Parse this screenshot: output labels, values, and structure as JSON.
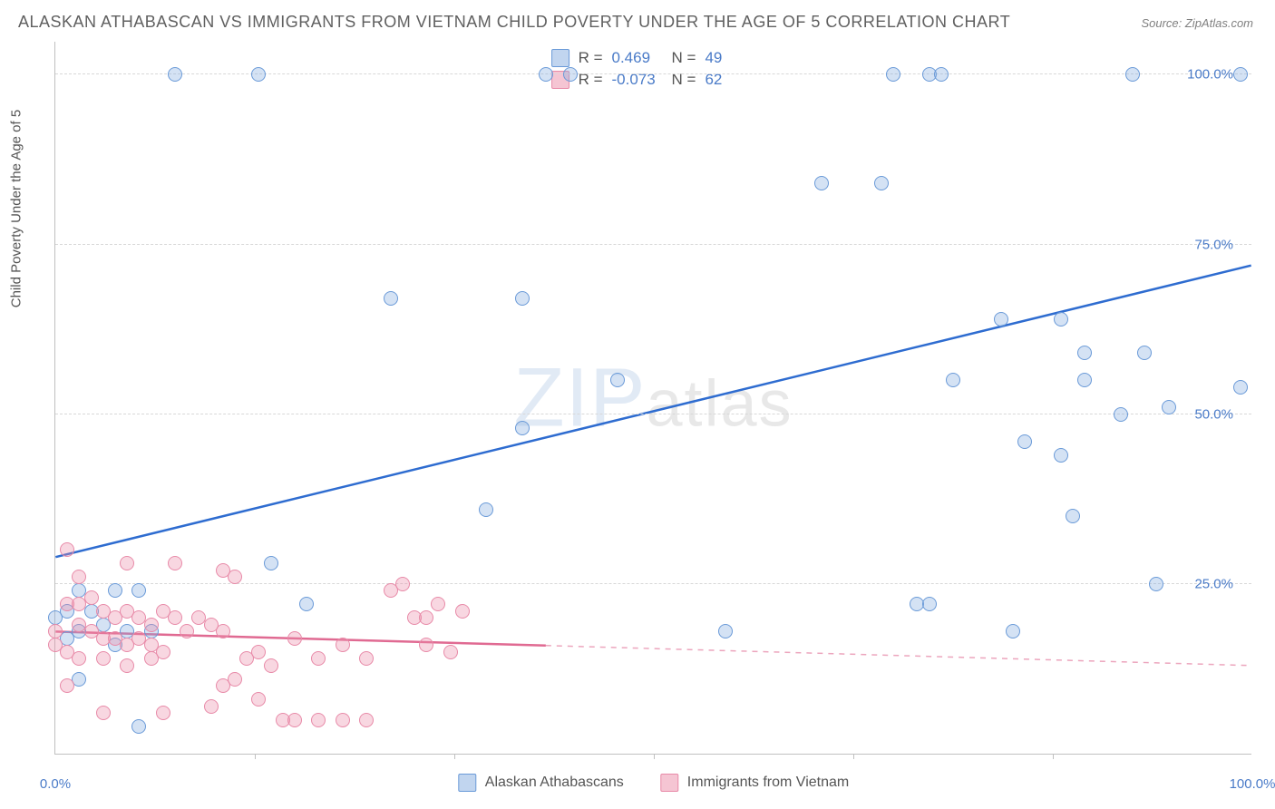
{
  "title": "ALASKAN ATHABASCAN VS IMMIGRANTS FROM VIETNAM CHILD POVERTY UNDER THE AGE OF 5 CORRELATION CHART",
  "source": "Source: ZipAtlas.com",
  "ylabel": "Child Poverty Under the Age of 5",
  "watermark": {
    "zip": "ZIP",
    "atlas": "atlas"
  },
  "chart": {
    "type": "scatter",
    "xlim": [
      0,
      100
    ],
    "ylim": [
      0,
      105
    ],
    "xticks": [
      0,
      100
    ],
    "xtick_labels": [
      "0.0%",
      "100.0%"
    ],
    "xtick_minor": [
      16.7,
      33.3,
      50,
      66.7,
      83.3
    ],
    "yticks": [
      25,
      50,
      75,
      100
    ],
    "ytick_labels": [
      "25.0%",
      "50.0%",
      "75.0%",
      "100.0%"
    ],
    "background_color": "#ffffff",
    "grid_color": "#d8d8d8",
    "marker_radius": 8,
    "series": [
      {
        "name": "Alaskan Athabascans",
        "color_fill": "rgba(132,172,224,0.35)",
        "color_stroke": "#6a9ad8",
        "trend": {
          "x1": 0,
          "y1": 29,
          "x2": 100,
          "y2": 72,
          "stroke": "#2e6cd0",
          "width": 2.5,
          "solid_until_x": 100
        },
        "R": "0.469",
        "N": "49",
        "points": [
          [
            10,
            100
          ],
          [
            17,
            100
          ],
          [
            41,
            100
          ],
          [
            43,
            100
          ],
          [
            70,
            100
          ],
          [
            73,
            100
          ],
          [
            74,
            100
          ],
          [
            90,
            100
          ],
          [
            99,
            100
          ],
          [
            64,
            84
          ],
          [
            69,
            84
          ],
          [
            28,
            67
          ],
          [
            39,
            67
          ],
          [
            79,
            64
          ],
          [
            84,
            64
          ],
          [
            86,
            59
          ],
          [
            91,
            59
          ],
          [
            86,
            55
          ],
          [
            75,
            55
          ],
          [
            99,
            54
          ],
          [
            93,
            51
          ],
          [
            47,
            55
          ],
          [
            89,
            50
          ],
          [
            81,
            46
          ],
          [
            84,
            44
          ],
          [
            39,
            48
          ],
          [
            36,
            36
          ],
          [
            85,
            35
          ],
          [
            18,
            28
          ],
          [
            72,
            22
          ],
          [
            73,
            22
          ],
          [
            92,
            25
          ],
          [
            80,
            18
          ],
          [
            56,
            18
          ],
          [
            21,
            22
          ],
          [
            2,
            24
          ],
          [
            5,
            24
          ],
          [
            7,
            24
          ],
          [
            3,
            21
          ],
          [
            4,
            19
          ],
          [
            2,
            18
          ],
          [
            6,
            18
          ],
          [
            8,
            18
          ],
          [
            1,
            21
          ],
          [
            1,
            17
          ],
          [
            5,
            16
          ],
          [
            2,
            11
          ],
          [
            7,
            4
          ],
          [
            0,
            20
          ]
        ]
      },
      {
        "name": "Immigrants from Vietnam",
        "color_fill": "rgba(236,140,168,0.35)",
        "color_stroke": "#e88aa8",
        "trend": {
          "x1": 0,
          "y1": 18,
          "x2": 100,
          "y2": 13,
          "stroke": "#e06a92",
          "width": 2.5,
          "solid_until_x": 41
        },
        "R": "-0.073",
        "N": "62",
        "points": [
          [
            1,
            30
          ],
          [
            6,
            28
          ],
          [
            10,
            28
          ],
          [
            14,
            27
          ],
          [
            15,
            26
          ],
          [
            28,
            24
          ],
          [
            29,
            25
          ],
          [
            32,
            22
          ],
          [
            34,
            21
          ],
          [
            1,
            22
          ],
          [
            2,
            22
          ],
          [
            3,
            23
          ],
          [
            4,
            21
          ],
          [
            5,
            20
          ],
          [
            6,
            21
          ],
          [
            7,
            20
          ],
          [
            8,
            19
          ],
          [
            9,
            21
          ],
          [
            10,
            20
          ],
          [
            11,
            18
          ],
          [
            12,
            20
          ],
          [
            13,
            19
          ],
          [
            14,
            18
          ],
          [
            2,
            19
          ],
          [
            3,
            18
          ],
          [
            4,
            17
          ],
          [
            5,
            17
          ],
          [
            6,
            16
          ],
          [
            7,
            17
          ],
          [
            8,
            16
          ],
          [
            9,
            15
          ],
          [
            1,
            15
          ],
          [
            2,
            14
          ],
          [
            4,
            14
          ],
          [
            6,
            13
          ],
          [
            8,
            14
          ],
          [
            16,
            14
          ],
          [
            17,
            15
          ],
          [
            18,
            13
          ],
          [
            20,
            17
          ],
          [
            22,
            14
          ],
          [
            24,
            16
          ],
          [
            26,
            14
          ],
          [
            31,
            16
          ],
          [
            33,
            15
          ],
          [
            30,
            20
          ],
          [
            31,
            20
          ],
          [
            14,
            10
          ],
          [
            15,
            11
          ],
          [
            17,
            8
          ],
          [
            13,
            7
          ],
          [
            19,
            5
          ],
          [
            20,
            5
          ],
          [
            22,
            5
          ],
          [
            24,
            5
          ],
          [
            26,
            5
          ],
          [
            4,
            6
          ],
          [
            9,
            6
          ],
          [
            1,
            10
          ],
          [
            0,
            18
          ],
          [
            0,
            16
          ],
          [
            2,
            26
          ]
        ]
      }
    ]
  },
  "legend_top": {
    "rows": [
      {
        "swatch": "blue",
        "r_label": "R =",
        "r_value": "0.469",
        "n_label": "N =",
        "n_value": "49"
      },
      {
        "swatch": "pink",
        "r_label": "R =",
        "r_value": "-0.073",
        "n_label": "N =",
        "n_value": "62"
      }
    ]
  },
  "legend_bottom": {
    "entries": [
      {
        "swatch": "blue",
        "label": "Alaskan Athabascans"
      },
      {
        "swatch": "pink",
        "label": "Immigrants from Vietnam"
      }
    ]
  }
}
